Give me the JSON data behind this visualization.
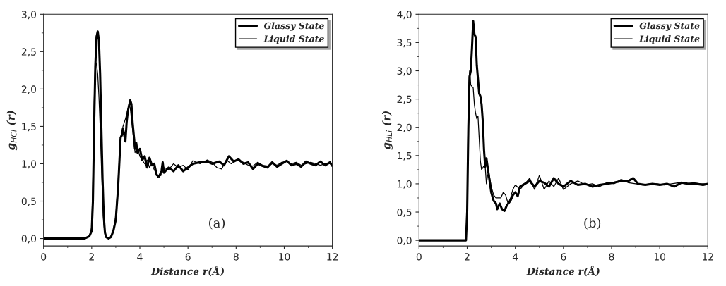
{
  "chart_data": [
    {
      "type": "line",
      "xlabel": "Distance r(Å)",
      "ylabel": "g$_{HCl}$ (r)",
      "annotations": [
        "(a)"
      ],
      "legend": "top right",
      "line_style": "solid",
      "marker": "none",
      "grid": false,
      "xlim": [
        0,
        12
      ],
      "xticks": [
        0,
        2,
        4,
        6,
        8,
        10,
        12
      ],
      "ylim": [
        -0.1,
        3.0
      ],
      "yticks": [
        {
          "value": 0,
          "label": "0,0"
        },
        {
          "value": 0.5,
          "label": "0,5"
        },
        {
          "value": 1,
          "label": "1,0"
        },
        {
          "value": 1.5,
          "label": "1,5"
        },
        {
          "value": 2,
          "label": "2,0"
        },
        {
          "value": 2.5,
          "label": "2,5"
        },
        {
          "value": 3,
          "label": "3,0"
        }
      ],
      "series": [
        {
          "name": "Glassy State",
          "color": "#000000",
          "x": [
            0,
            1.7,
            1.9,
            2.0,
            2.05,
            2.1,
            2.15,
            2.2,
            2.25,
            2.3,
            2.35,
            2.4,
            2.45,
            2.5,
            2.55,
            2.6,
            2.7,
            2.8,
            2.9,
            3.0,
            3.1,
            3.2,
            3.25,
            3.3,
            3.4,
            3.45,
            3.5,
            3.6,
            3.65,
            3.7,
            3.8,
            3.85,
            3.9,
            4.0,
            4.1,
            4.2,
            4.3,
            4.4,
            4.5,
            4.6,
            4.7,
            4.8,
            4.9,
            4.95,
            5.0,
            5.2,
            5.4,
            5.6,
            5.8,
            6.0,
            6.2,
            6.5,
            6.8,
            7.0,
            7.3,
            7.5,
            7.7,
            7.9,
            8.1,
            8.3,
            8.5,
            8.7,
            8.9,
            9.1,
            9.3,
            9.5,
            9.7,
            9.9,
            10.1,
            10.3,
            10.5,
            10.7,
            10.9,
            11.1,
            11.3,
            11.5,
            11.7,
            11.9,
            12
          ],
          "values": [
            0,
            0,
            0.03,
            0.1,
            0.5,
            1.5,
            2.3,
            2.7,
            2.77,
            2.65,
            2.2,
            1.5,
            0.8,
            0.3,
            0.08,
            0.02,
            0,
            0.02,
            0.1,
            0.25,
            0.7,
            1.35,
            1.38,
            1.47,
            1.3,
            1.55,
            1.7,
            1.85,
            1.8,
            1.55,
            1.2,
            1.28,
            1.15,
            1.2,
            1.05,
            1.1,
            0.95,
            1.08,
            0.98,
            1.0,
            0.85,
            0.83,
            0.9,
            1.02,
            0.88,
            0.95,
            0.9,
            0.98,
            0.9,
            0.95,
            1.0,
            1.02,
            1.03,
            1.0,
            1.03,
            0.98,
            1.1,
            1.03,
            1.06,
            1.0,
            1.02,
            0.93,
            1.0,
            0.97,
            0.95,
            1.02,
            0.96,
            1.0,
            1.04,
            0.98,
            1.0,
            0.96,
            1.03,
            1.0,
            0.98,
            1.03,
            0.98,
            1.02,
            0.97
          ]
        },
        {
          "name": "Liquid State",
          "color": "#000000",
          "x": [
            0,
            1.7,
            1.9,
            2.0,
            2.05,
            2.1,
            2.15,
            2.2,
            2.25,
            2.3,
            2.35,
            2.4,
            2.45,
            2.5,
            2.55,
            2.6,
            2.7,
            2.8,
            2.9,
            3.0,
            3.1,
            3.2,
            3.3,
            3.4,
            3.5,
            3.55,
            3.6,
            3.7,
            3.8,
            3.9,
            4.0,
            4.1,
            4.2,
            4.3,
            4.4,
            4.5,
            4.6,
            4.75,
            4.9,
            5.0,
            5.2,
            5.4,
            5.6,
            5.8,
            6.0,
            6.2,
            6.5,
            6.8,
            7.0,
            7.2,
            7.4,
            7.6,
            7.8,
            8.0,
            8.3,
            8.5,
            8.7,
            8.9,
            9.1,
            9.3,
            9.5,
            9.7,
            9.9,
            10.1,
            10.3,
            10.5,
            10.7,
            10.9,
            11.1,
            11.3,
            11.5,
            11.7,
            11.9,
            12
          ],
          "values": [
            0,
            0,
            0.03,
            0.15,
            0.8,
            1.8,
            2.37,
            2.33,
            2.2,
            1.9,
            1.5,
            1.0,
            0.55,
            0.2,
            0.05,
            0.01,
            0,
            0.03,
            0.12,
            0.3,
            0.8,
            1.35,
            1.5,
            1.6,
            1.72,
            1.8,
            1.75,
            1.45,
            1.15,
            1.22,
            1.1,
            1.05,
            1.0,
            1.05,
            0.95,
            1.0,
            0.92,
            0.82,
            0.85,
            0.95,
            0.92,
            1.0,
            0.95,
            0.98,
            0.92,
            1.04,
            1.0,
            1.05,
            1.02,
            0.95,
            0.93,
            1.05,
            1.0,
            1.05,
            1.02,
            0.98,
            0.97,
            1.02,
            0.98,
            0.97,
            1.0,
            0.98,
            1.02,
            1.03,
            1.0,
            1.02,
            0.98,
            1.0,
            1.02,
            1.0,
            0.98,
            1.0,
            1.0,
            0.98
          ]
        }
      ]
    },
    {
      "type": "line",
      "xlabel": "Distance r(Å)",
      "ylabel": "g$_{HLi}$ (r)",
      "annotations": [
        "(b)"
      ],
      "legend": "top right",
      "line_style": "solid",
      "marker": "none",
      "grid": false,
      "xlim": [
        0,
        12
      ],
      "xticks": [
        0,
        2,
        4,
        6,
        8,
        10,
        12
      ],
      "ylim": [
        -0.1,
        4.0
      ],
      "yticks": [
        {
          "value": 0,
          "label": "0,0"
        },
        {
          "value": 0.5,
          "label": "0,5"
        },
        {
          "value": 1,
          "label": "1,0"
        },
        {
          "value": 1.5,
          "label": "1,5"
        },
        {
          "value": 2,
          "label": "2,0"
        },
        {
          "value": 2.5,
          "label": "2,5"
        },
        {
          "value": 3,
          "label": "3,0"
        },
        {
          "value": 3.5,
          "label": "3,5"
        },
        {
          "value": 4,
          "label": "4,0"
        }
      ],
      "series": [
        {
          "name": "Glassy State",
          "color": "#000000",
          "x": [
            0,
            1.95,
            2.0,
            2.05,
            2.1,
            2.15,
            2.2,
            2.25,
            2.3,
            2.35,
            2.4,
            2.5,
            2.55,
            2.6,
            2.65,
            2.7,
            2.75,
            2.8,
            2.9,
            3.0,
            3.1,
            3.2,
            3.25,
            3.35,
            3.45,
            3.55,
            3.65,
            3.8,
            3.9,
            4.0,
            4.1,
            4.2,
            4.4,
            4.6,
            4.8,
            5.0,
            5.2,
            5.4,
            5.6,
            5.8,
            6.0,
            6.3,
            6.6,
            6.9,
            7.2,
            7.5,
            7.8,
            8.1,
            8.4,
            8.7,
            8.9,
            9.1,
            9.4,
            9.7,
            10.0,
            10.3,
            10.6,
            10.9,
            11.2,
            11.5,
            11.8,
            12
          ],
          "values": [
            0,
            0,
            0.5,
            2.0,
            2.9,
            3.0,
            3.4,
            3.88,
            3.65,
            3.6,
            3.1,
            2.6,
            2.55,
            2.4,
            2.1,
            1.6,
            1.3,
            1.45,
            1.15,
            0.85,
            0.7,
            0.65,
            0.55,
            0.65,
            0.55,
            0.52,
            0.62,
            0.7,
            0.8,
            0.85,
            0.78,
            0.95,
            1.0,
            1.05,
            0.95,
            1.05,
            1.02,
            0.95,
            1.1,
            1.0,
            0.95,
            1.05,
            0.98,
            1.0,
            0.95,
            0.98,
            1.0,
            1.02,
            1.05,
            1.05,
            1.1,
            1.0,
            0.98,
            1.0,
            0.98,
            1.0,
            0.95,
            1.02,
            1.0,
            1.0,
            0.98,
            1.0
          ]
        },
        {
          "name": "Liquid State",
          "color": "#000000",
          "x": [
            0,
            1.95,
            2.0,
            2.05,
            2.1,
            2.15,
            2.25,
            2.3,
            2.35,
            2.4,
            2.45,
            2.5,
            2.55,
            2.6,
            2.7,
            2.75,
            2.8,
            2.85,
            2.9,
            3.0,
            3.1,
            3.2,
            3.3,
            3.4,
            3.5,
            3.6,
            3.7,
            3.8,
            3.9,
            4.0,
            4.2,
            4.4,
            4.6,
            4.8,
            5.0,
            5.2,
            5.4,
            5.6,
            5.8,
            6.0,
            6.3,
            6.6,
            6.9,
            7.2,
            7.5,
            7.8,
            8.1,
            8.4,
            8.7,
            9.0,
            9.3,
            9.6,
            9.9,
            10.2,
            10.5,
            10.8,
            11.1,
            11.4,
            11.7,
            12
          ],
          "values": [
            0,
            0,
            0.5,
            2.6,
            3.0,
            2.75,
            2.7,
            2.4,
            2.25,
            2.15,
            2.2,
            1.8,
            1.4,
            1.25,
            1.32,
            1.3,
            1.0,
            1.15,
            1.2,
            0.95,
            0.8,
            0.75,
            0.75,
            0.75,
            0.85,
            0.8,
            0.65,
            0.75,
            0.9,
            0.98,
            0.9,
            1.0,
            1.1,
            0.9,
            1.15,
            0.9,
            1.05,
            0.95,
            1.1,
            0.9,
            1.0,
            1.05,
            0.98,
            1.0,
            0.95,
            1.02,
            1.0,
            1.08,
            1.02,
            1.0,
            0.98,
            1.0,
            1.0,
            0.98,
            1.0,
            1.02,
            1.0,
            1.02,
            1.0,
            1.0
          ]
        }
      ]
    }
  ]
}
